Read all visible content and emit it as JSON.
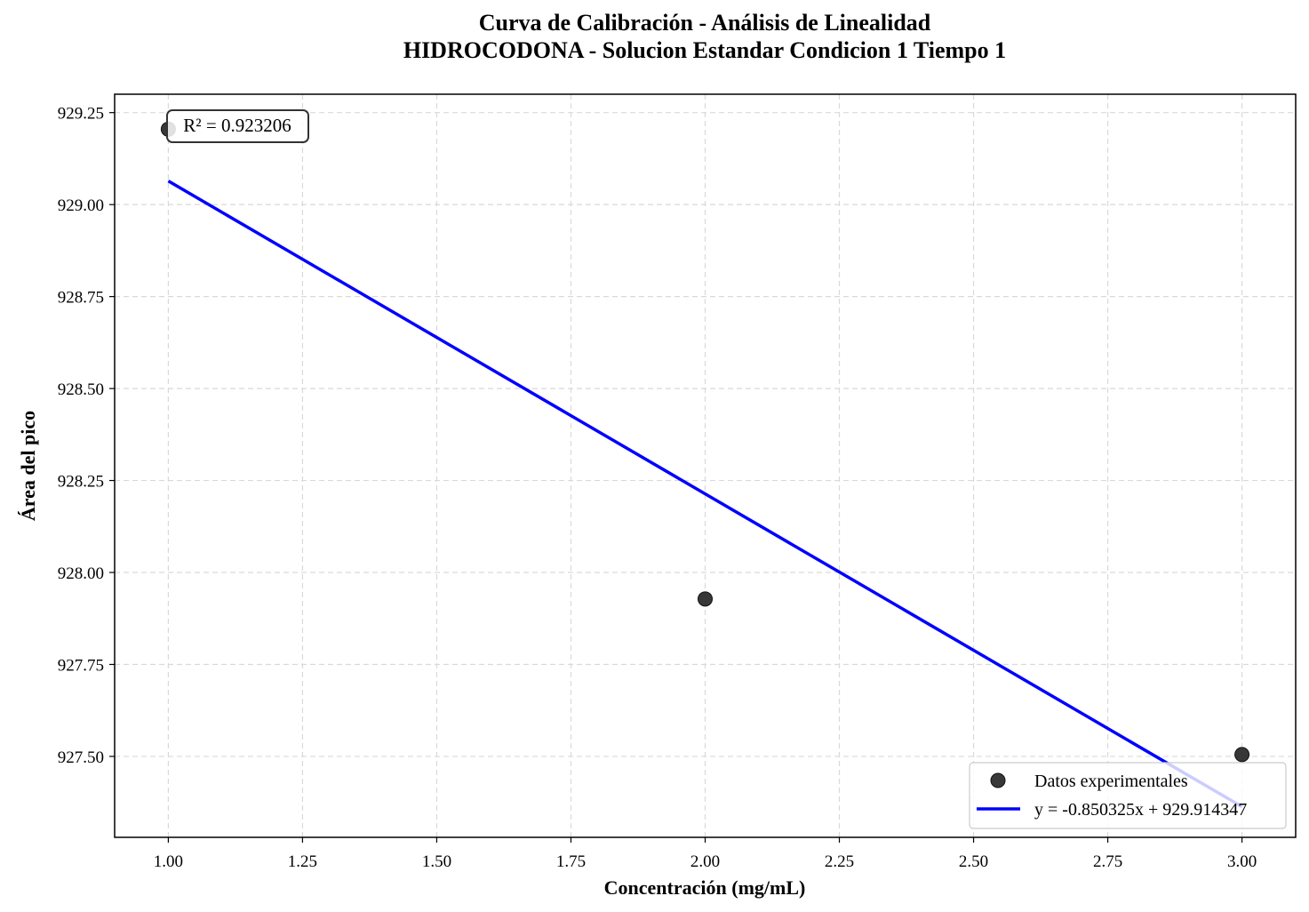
{
  "chart_data": {
    "type": "scatter",
    "title": "Curva de Calibración - Análisis de Linealidad",
    "subtitle": "HIDROCODONA - Solucion Estandar Condicion 1 Tiempo 1",
    "xlabel": "Concentración (mg/mL)",
    "ylabel": "Área del pico",
    "xlim": [
      0.9,
      3.1
    ],
    "ylim": [
      927.28,
      929.3
    ],
    "xticks": [
      1.0,
      1.25,
      1.5,
      1.75,
      2.0,
      2.25,
      2.5,
      2.75,
      3.0
    ],
    "xtick_labels": [
      "1.00",
      "1.25",
      "1.50",
      "1.75",
      "2.00",
      "2.25",
      "2.50",
      "2.75",
      "3.00"
    ],
    "yticks": [
      927.5,
      927.75,
      928.0,
      928.25,
      928.5,
      928.75,
      929.0,
      929.25
    ],
    "ytick_labels": [
      "927.50",
      "927.75",
      "928.00",
      "928.25",
      "928.50",
      "928.75",
      "929.00",
      "929.25"
    ],
    "grid": true,
    "series": [
      {
        "name": "Datos experimentales",
        "kind": "scatter",
        "color": "#222222",
        "x": [
          1.0,
          2.0,
          3.0
        ],
        "y": [
          929.205,
          927.928,
          927.505
        ]
      },
      {
        "name": "y = -0.850325x + 929.914347",
        "kind": "line",
        "color": "#0000ff",
        "slope": -0.850325,
        "intercept": 929.914347,
        "x": [
          1.0,
          3.0
        ]
      }
    ],
    "annotation": "R² = 0.923206",
    "legend_position": "lower right"
  }
}
